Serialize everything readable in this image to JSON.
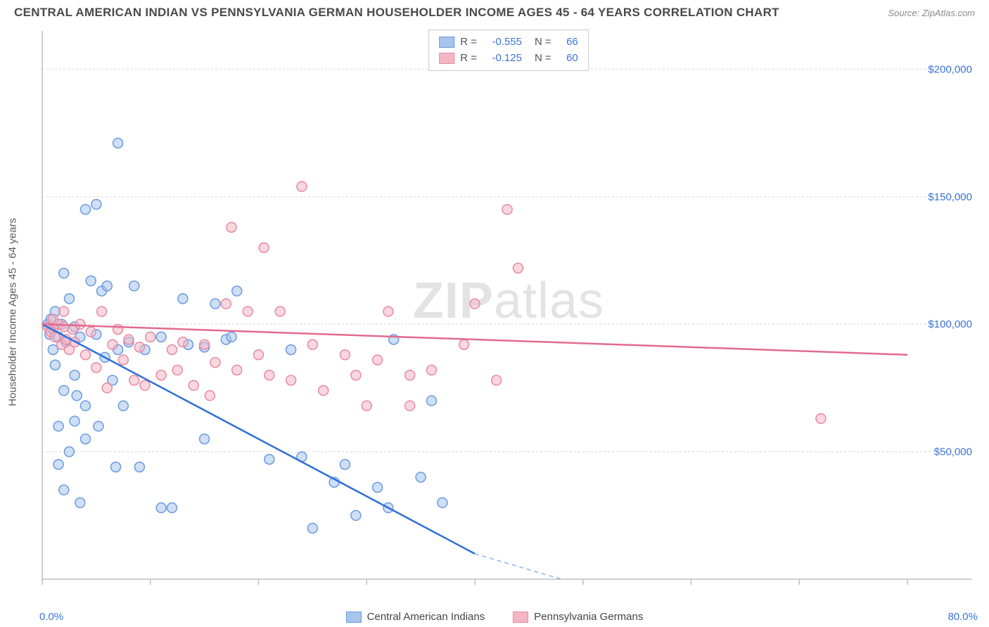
{
  "header": {
    "title": "CENTRAL AMERICAN INDIAN VS PENNSYLVANIA GERMAN HOUSEHOLDER INCOME AGES 45 - 64 YEARS CORRELATION CHART",
    "source": "Source: ZipAtlas.com"
  },
  "watermark": {
    "bold": "ZIP",
    "rest": "atlas"
  },
  "chart": {
    "type": "scatter-with-regression",
    "ylabel": "Householder Income Ages 45 - 64 years",
    "label_fontsize": 15,
    "label_color": "#5a5a5a",
    "xlim": [
      0,
      80
    ],
    "ylim": [
      0,
      215000
    ],
    "x_ticks": [
      0,
      10,
      20,
      30,
      40,
      50,
      60,
      70,
      80
    ],
    "y_gridlines": [
      50000,
      100000,
      150000,
      200000
    ],
    "y_tick_labels": [
      "$50,000",
      "$100,000",
      "$150,000",
      "$200,000"
    ],
    "x_min_label": "0.0%",
    "x_max_label": "80.0%",
    "background_color": "#ffffff",
    "grid_color": "#d8d8d8",
    "axis_color": "#bfbfbf",
    "tick_color": "#bfbfbf",
    "value_color": "#3b74d8",
    "marker_radius": 7,
    "marker_stroke_width": 1.5,
    "regression_width": 2.5,
    "series": [
      {
        "name": "Central American Indians",
        "fill": "#a7c4ec",
        "fill_opacity": 0.55,
        "stroke": "#6b9ae0",
        "line_color": "#2f6fd8",
        "R": "-0.555",
        "N": "66",
        "regression": {
          "x1": 0,
          "y1": 100000,
          "x2": 40,
          "y2": 10000
        },
        "regression_dash_extend": {
          "x1": 40,
          "y1": 10000,
          "x2": 48,
          "y2": -8000
        },
        "points": [
          [
            0.5,
            100000
          ],
          [
            0.7,
            96000
          ],
          [
            0.8,
            102000
          ],
          [
            1,
            98000
          ],
          [
            1,
            90000
          ],
          [
            1.2,
            105000
          ],
          [
            1.2,
            84000
          ],
          [
            1.5,
            95000
          ],
          [
            1.5,
            60000
          ],
          [
            1.5,
            45000
          ],
          [
            1.8,
            100000
          ],
          [
            2,
            120000
          ],
          [
            2,
            74000
          ],
          [
            2,
            35000
          ],
          [
            2.2,
            93000
          ],
          [
            2.5,
            50000
          ],
          [
            2.5,
            110000
          ],
          [
            3,
            99000
          ],
          [
            3,
            62000
          ],
          [
            3,
            80000
          ],
          [
            3.2,
            72000
          ],
          [
            3.5,
            95000
          ],
          [
            3.5,
            30000
          ],
          [
            4,
            68000
          ],
          [
            4,
            55000
          ],
          [
            4,
            145000
          ],
          [
            4.5,
            117000
          ],
          [
            5,
            96000
          ],
          [
            5,
            147000
          ],
          [
            5.2,
            60000
          ],
          [
            5.5,
            113000
          ],
          [
            5.8,
            87000
          ],
          [
            6,
            115000
          ],
          [
            6.5,
            78000
          ],
          [
            6.8,
            44000
          ],
          [
            7,
            171000
          ],
          [
            7,
            90000
          ],
          [
            7.5,
            68000
          ],
          [
            8,
            93000
          ],
          [
            8.5,
            115000
          ],
          [
            9,
            44000
          ],
          [
            9.5,
            90000
          ],
          [
            11,
            95000
          ],
          [
            11,
            28000
          ],
          [
            12,
            28000
          ],
          [
            13,
            110000
          ],
          [
            13.5,
            92000
          ],
          [
            15,
            55000
          ],
          [
            15,
            91000
          ],
          [
            16,
            108000
          ],
          [
            17,
            94000
          ],
          [
            17.5,
            95000
          ],
          [
            18,
            113000
          ],
          [
            21,
            47000
          ],
          [
            23,
            90000
          ],
          [
            24,
            48000
          ],
          [
            25,
            20000
          ],
          [
            27,
            38000
          ],
          [
            28,
            45000
          ],
          [
            29,
            25000
          ],
          [
            31,
            36000
          ],
          [
            32,
            28000
          ],
          [
            32.5,
            94000
          ],
          [
            35,
            40000
          ],
          [
            36,
            70000
          ],
          [
            37,
            30000
          ]
        ]
      },
      {
        "name": "Pennsylvania Germans",
        "fill": "#f4b6c5",
        "fill_opacity": 0.55,
        "stroke": "#e88aa3",
        "line_color": "#e26b8f",
        "R": "-0.125",
        "N": "60",
        "regression": {
          "x1": 0,
          "y1": 100000,
          "x2": 80,
          "y2": 88000
        },
        "points": [
          [
            0.5,
            99000
          ],
          [
            0.8,
            97000
          ],
          [
            1,
            102000
          ],
          [
            1.2,
            95000
          ],
          [
            1.5,
            100000
          ],
          [
            1.8,
            92000
          ],
          [
            2,
            99000
          ],
          [
            2,
            105000
          ],
          [
            2.2,
            94000
          ],
          [
            2.5,
            90000
          ],
          [
            2.8,
            98000
          ],
          [
            3,
            93000
          ],
          [
            3.5,
            100000
          ],
          [
            4,
            88000
          ],
          [
            4.5,
            97000
          ],
          [
            5,
            83000
          ],
          [
            5.5,
            105000
          ],
          [
            6,
            75000
          ],
          [
            6.5,
            92000
          ],
          [
            7,
            98000
          ],
          [
            7.5,
            86000
          ],
          [
            8,
            94000
          ],
          [
            8.5,
            78000
          ],
          [
            9,
            91000
          ],
          [
            9.5,
            76000
          ],
          [
            10,
            95000
          ],
          [
            11,
            80000
          ],
          [
            12,
            90000
          ],
          [
            12.5,
            82000
          ],
          [
            13,
            93000
          ],
          [
            14,
            76000
          ],
          [
            15,
            92000
          ],
          [
            15.5,
            72000
          ],
          [
            16,
            85000
          ],
          [
            17,
            108000
          ],
          [
            17.5,
            138000
          ],
          [
            18,
            82000
          ],
          [
            19,
            105000
          ],
          [
            20,
            88000
          ],
          [
            20.5,
            130000
          ],
          [
            21,
            80000
          ],
          [
            22,
            105000
          ],
          [
            23,
            78000
          ],
          [
            24,
            154000
          ],
          [
            25,
            92000
          ],
          [
            26,
            74000
          ],
          [
            28,
            88000
          ],
          [
            29,
            80000
          ],
          [
            30,
            68000
          ],
          [
            31,
            86000
          ],
          [
            32,
            105000
          ],
          [
            34,
            80000
          ],
          [
            34,
            68000
          ],
          [
            36,
            82000
          ],
          [
            39,
            92000
          ],
          [
            40,
            108000
          ],
          [
            42,
            78000
          ],
          [
            43,
            145000
          ],
          [
            44,
            122000
          ],
          [
            72,
            63000
          ]
        ]
      }
    ]
  },
  "bottom_legend": {
    "items": [
      {
        "label": "Central American Indians",
        "fill": "#a7c4ec",
        "stroke": "#6b9ae0"
      },
      {
        "label": "Pennsylvania Germans",
        "fill": "#f4b6c5",
        "stroke": "#e88aa3"
      }
    ]
  }
}
